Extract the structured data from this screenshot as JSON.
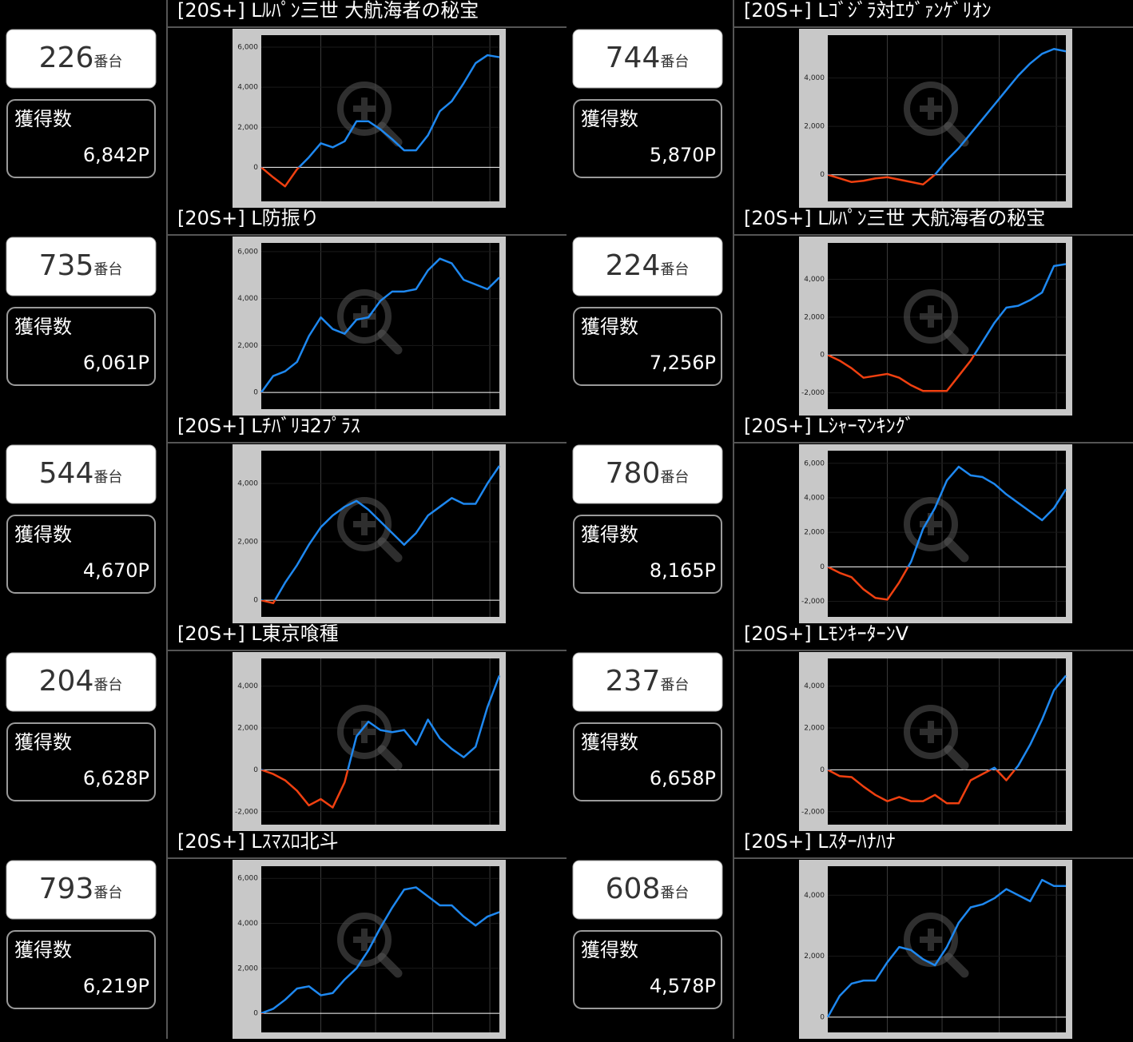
{
  "machines": [
    {
      "title": "[20S+] Lﾙﾊﾟﾝ三世 大航海者の秘宝",
      "number": "226",
      "unit": "番台",
      "gain_label": "獲得数",
      "gain": "6,842P"
    },
    {
      "title": "[20S+] Lｺﾞｼﾞﾗ対ｴｳﾞｧﾝｹﾞﾘｵﾝ",
      "number": "744",
      "unit": "番台",
      "gain_label": "獲得数",
      "gain": "5,870P"
    },
    {
      "title": "[20S+] L防振り",
      "number": "735",
      "unit": "番台",
      "gain_label": "獲得数",
      "gain": "6,061P"
    },
    {
      "title": "[20S+] Lﾙﾊﾟﾝ三世 大航海者の秘宝",
      "number": "224",
      "unit": "番台",
      "gain_label": "獲得数",
      "gain": "7,256P"
    },
    {
      "title": "[20S+] Lﾁﾊﾞﾘﾖ2ﾌﾟﾗｽ",
      "number": "544",
      "unit": "番台",
      "gain_label": "獲得数",
      "gain": "4,670P"
    },
    {
      "title": "[20S+] Lｼｬｰﾏﾝｷﾝｸﾞ",
      "number": "780",
      "unit": "番台",
      "gain_label": "獲得数",
      "gain": "8,165P"
    },
    {
      "title": "[20S+] L東京喰種",
      "number": "204",
      "unit": "番台",
      "gain_label": "獲得数",
      "gain": "6,628P"
    },
    {
      "title": "[20S+] LﾓﾝｷｰﾀｰﾝV",
      "number": "237",
      "unit": "番台",
      "gain_label": "獲得数",
      "gain": "6,658P"
    },
    {
      "title": "[20S+] Lｽﾏｽﾛ北斗",
      "number": "793",
      "unit": "番台",
      "gain_label": "獲得数",
      "gain": "6,219P"
    },
    {
      "title": "[20S+] Lｽﾀｰﾊﾅﾊﾅ",
      "number": "608",
      "unit": "番台",
      "gain_label": "獲得数",
      "gain": "4,578P"
    }
  ],
  "chart_data": [
    {
      "type": "line",
      "color": "#1e88f0",
      "negative_color": "#f04010",
      "ylim": [
        -1700,
        6600
      ],
      "yticks": [
        0,
        {
          "value": 2000,
          "label": "2,000"
        },
        {
          "value": 4000,
          "label": "4,000"
        },
        {
          "value": 6000,
          "label": "6,000"
        }
      ],
      "values": [
        0,
        -500,
        -950,
        -100,
        500,
        1200,
        1000,
        1300,
        2300,
        2300,
        1900,
        1400,
        850,
        850,
        1600,
        2800,
        3300,
        4200,
        5200,
        5600,
        5500
      ]
    },
    {
      "type": "line",
      "color": "#1e88f0",
      "negative_color": "#f04010",
      "ylim": [
        -1100,
        5770
      ],
      "yticks": [
        0,
        {
          "value": 2000,
          "label": "2,000"
        },
        {
          "value": 4000,
          "label": "4,000"
        }
      ],
      "values": [
        0,
        -150,
        -300,
        -250,
        -150,
        -100,
        -200,
        -300,
        -400,
        0,
        600,
        1100,
        1700,
        2300,
        2900,
        3500,
        4100,
        4600,
        5000,
        5200,
        5100
      ]
    },
    {
      "type": "line",
      "color": "#1e88f0",
      "negative_color": "#f04010",
      "ylim": [
        -710,
        6370
      ],
      "yticks": [
        0,
        {
          "value": 2000,
          "label": "2,000"
        },
        {
          "value": 4000,
          "label": "4,000"
        },
        {
          "value": 6000,
          "label": "6,000"
        }
      ],
      "values": [
        0,
        700,
        900,
        1300,
        2400,
        3200,
        2700,
        2500,
        3100,
        3200,
        3900,
        4300,
        4300,
        4400,
        5200,
        5700,
        5500,
        4800,
        4600,
        4400,
        4900
      ]
    },
    {
      "type": "line",
      "color": "#1e88f0",
      "negative_color": "#f04010",
      "ylim": [
        -2860,
        5920
      ],
      "yticks": [
        {
          "value": -2000,
          "label": "-2,000"
        },
        0,
        {
          "value": 2000,
          "label": "2,000"
        },
        {
          "value": 4000,
          "label": "4,000"
        }
      ],
      "values": [
        0,
        -300,
        -700,
        -1200,
        -1100,
        -1000,
        -1200,
        -1600,
        -1900,
        -1900,
        -1900,
        -1100,
        -300,
        700,
        1700,
        2500,
        2600,
        2900,
        3300,
        4700,
        4800
      ]
    },
    {
      "type": "line",
      "color": "#1e88f0",
      "negative_color": "#f04010",
      "ylim": [
        -570,
        5120
      ],
      "yticks": [
        0,
        {
          "value": 2000,
          "label": "2,000"
        },
        {
          "value": 4000,
          "label": "4,000"
        }
      ],
      "values": [
        0,
        -100,
        600,
        1200,
        1900,
        2500,
        2900,
        3200,
        3400,
        3100,
        2700,
        2300,
        1900,
        2300,
        2900,
        3200,
        3500,
        3300,
        3300,
        4000,
        4600
      ]
    },
    {
      "type": "line",
      "color": "#1e88f0",
      "negative_color": "#f04010",
      "ylim": [
        -2900,
        6730
      ],
      "yticks": [
        {
          "value": -2000,
          "label": "-2,000"
        },
        0,
        {
          "value": 2000,
          "label": "2,000"
        },
        {
          "value": 4000,
          "label": "4,000"
        },
        {
          "value": 6000,
          "label": "6,000"
        }
      ],
      "values": [
        0,
        -350,
        -600,
        -1300,
        -1800,
        -1900,
        -900,
        300,
        2200,
        3400,
        5000,
        5800,
        5300,
        5200,
        4800,
        4200,
        3700,
        3200,
        2700,
        3400,
        4500
      ]
    },
    {
      "type": "line",
      "color": "#1e88f0",
      "negative_color": "#f04010",
      "ylim": [
        -2620,
        5320
      ],
      "yticks": [
        {
          "value": -2000,
          "label": "-2,000"
        },
        0,
        {
          "value": 2000,
          "label": "2,000"
        },
        {
          "value": 4000,
          "label": "4,000"
        }
      ],
      "values": [
        0,
        -200,
        -500,
        -1000,
        -1700,
        -1400,
        -1800,
        -600,
        1600,
        2300,
        1900,
        1800,
        1900,
        1200,
        2400,
        1500,
        1000,
        600,
        1100,
        3000,
        4500
      ]
    },
    {
      "type": "line",
      "color": "#1e88f0",
      "negative_color": "#f04010",
      "ylim": [
        -2620,
        5320
      ],
      "yticks": [
        {
          "value": -2000,
          "label": "-2,000"
        },
        0,
        {
          "value": 2000,
          "label": "2,000"
        },
        {
          "value": 4000,
          "label": "4,000"
        }
      ],
      "values": [
        0,
        -300,
        -350,
        -800,
        -1200,
        -1500,
        -1300,
        -1500,
        -1500,
        -1200,
        -1600,
        -1600,
        -500,
        -200,
        100,
        -500,
        200,
        1200,
        2400,
        3800,
        4500
      ]
    },
    {
      "type": "line",
      "color": "#1e88f0",
      "negative_color": "#f04010",
      "ylim": [
        -850,
        6540
      ],
      "yticks": [
        0,
        {
          "value": 2000,
          "label": "2,000"
        },
        {
          "value": 4000,
          "label": "4,000"
        },
        {
          "value": 6000,
          "label": "6,000"
        }
      ],
      "values": [
        0,
        200,
        600,
        1100,
        1200,
        800,
        900,
        1500,
        2000,
        2800,
        3800,
        4700,
        5500,
        5600,
        5200,
        4800,
        4800,
        4300,
        3900,
        4300,
        4500
      ]
    },
    {
      "type": "line",
      "color": "#1e88f0",
      "negative_color": "#f04010",
      "ylim": [
        -500,
        4950
      ],
      "yticks": [
        0,
        {
          "value": 2000,
          "label": "2,000"
        },
        {
          "value": 4000,
          "label": "4,000"
        }
      ],
      "values": [
        0,
        700,
        1100,
        1200,
        1200,
        1800,
        2300,
        2200,
        1900,
        1700,
        2300,
        3100,
        3600,
        3700,
        3900,
        4200,
        4000,
        3800,
        4500,
        4300,
        4300
      ]
    }
  ]
}
